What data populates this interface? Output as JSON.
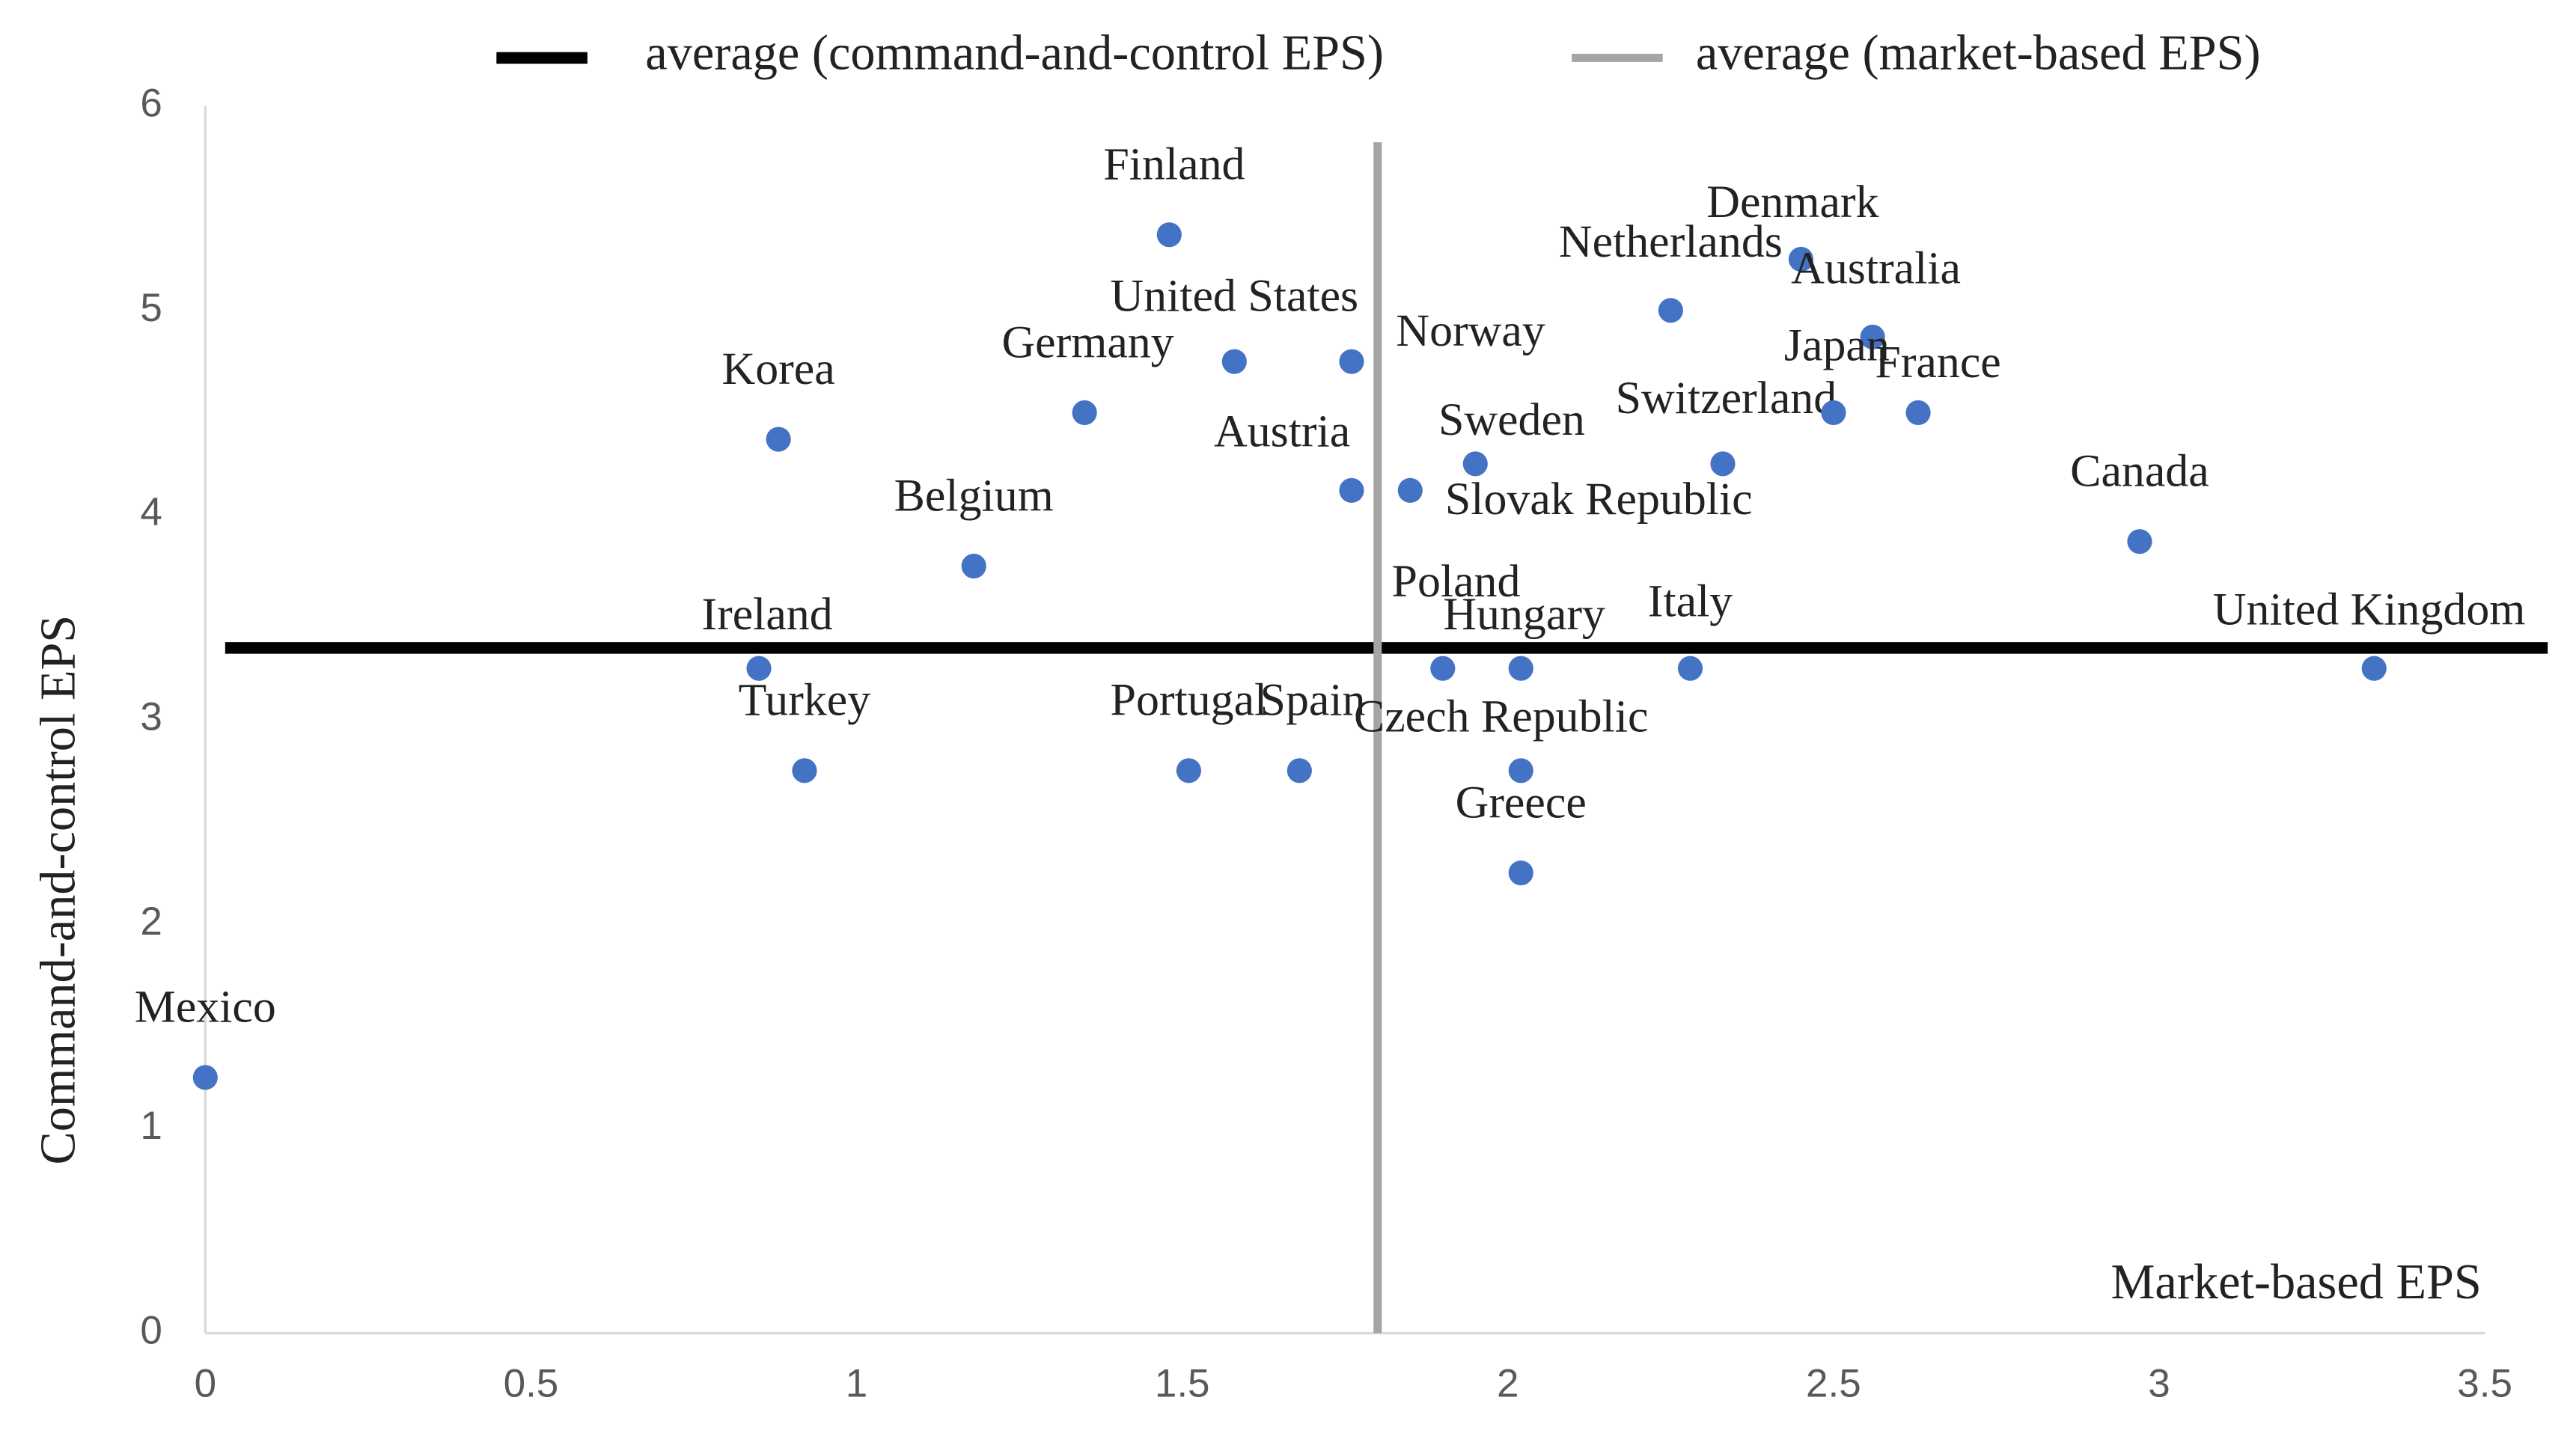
{
  "chart_data": {
    "type": "scatter",
    "x_label": "Market-based EPS",
    "y_label": "Command-and-control EPS",
    "labels": [
      "Mexico",
      "Korea",
      "Ireland",
      "Turkey",
      "Belgium",
      "Germany",
      "Finland",
      "United States",
      "Norway",
      "Austria",
      "Slovak Republic",
      "Sweden",
      "Portugal",
      "Spain",
      "Poland",
      "Hungary",
      "Czech Republic",
      "Greece",
      "Italy",
      "Switzerland",
      "Netherlands",
      "Denmark",
      "Australia",
      "Japan",
      "France",
      "Canada",
      "United Kingdom"
    ],
    "x": [
      0,
      0.88,
      0.85,
      0.92,
      1.18,
      1.35,
      1.48,
      1.58,
      1.76,
      1.76,
      1.85,
      1.95,
      1.51,
      1.68,
      1.9,
      2.02,
      2.02,
      2.02,
      2.28,
      2.33,
      2.25,
      2.45,
      2.56,
      2.5,
      2.63,
      2.97,
      3.33
    ],
    "y": [
      1.25,
      4.37,
      3.25,
      2.75,
      3.75,
      4.5,
      5.37,
      4.75,
      4.75,
      4.12,
      4.12,
      4.25,
      2.75,
      2.75,
      3.25,
      3.25,
      2.75,
      2.25,
      3.25,
      4.25,
      5,
      5.25,
      4.87,
      4.5,
      4.5,
      3.87,
      3.25
    ],
    "color": "#4472c4",
    "reference_lines": [
      {
        "name": "average (command-and-control EPS)",
        "axis": "y",
        "value": 3.35,
        "color": "#000000"
      },
      {
        "name": "average (market-based EPS)",
        "axis": "x",
        "value": 1.8,
        "color": "#a5a5a5"
      }
    ],
    "xlim": [
      0,
      3.5
    ],
    "ylim": [
      0,
      6
    ],
    "xticks": [
      0,
      0.5,
      1,
      1.5,
      2,
      2.5,
      3,
      3.5
    ],
    "yticks": [
      0,
      1,
      2,
      3,
      4,
      5,
      6
    ]
  }
}
